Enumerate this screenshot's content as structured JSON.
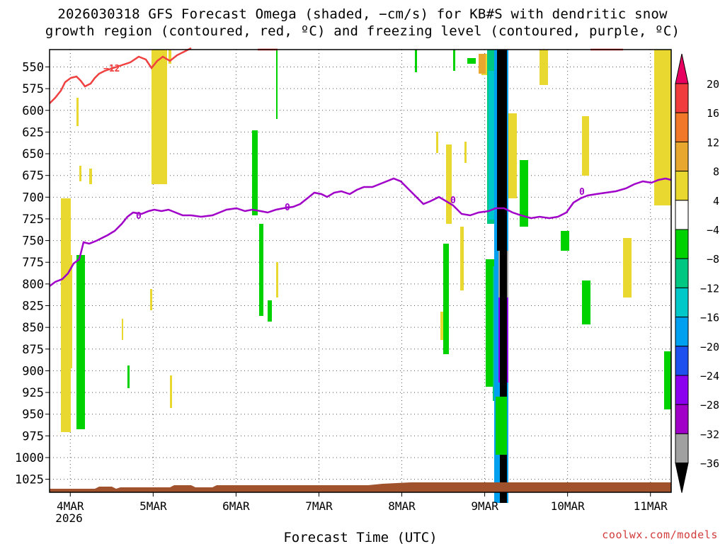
{
  "title_line1": "2026030318 GFS Forecast Omega (shaded, −cm/s) for KB#S with dendritic snow",
  "title_line2": "growth region (contoured, red, ºC) and freezing level (contoured, purple, ºC)",
  "credit": "coolwx.com/models",
  "chart_data": {
    "type": "heatmap",
    "xlabel": "Forecast Time (UTC)",
    "ylabel": "",
    "x_ticks": [
      "4MAR\n2026",
      "5MAR",
      "6MAR",
      "7MAR",
      "8MAR",
      "9MAR",
      "10MAR",
      "11MAR"
    ],
    "x_tick_hours": [
      6,
      30,
      54,
      78,
      102,
      126,
      150,
      174
    ],
    "xlim_hours": [
      0,
      180
    ],
    "y_ticks": [
      550,
      575,
      600,
      625,
      650,
      675,
      700,
      725,
      750,
      775,
      800,
      825,
      850,
      875,
      900,
      925,
      950,
      975,
      1000,
      1025
    ],
    "ylim_hpa": [
      530,
      1040
    ],
    "grid": true,
    "colorbar": {
      "labels": [
        "20",
        "16",
        "12",
        "8",
        "4",
        "−4",
        "−8",
        "−12",
        "−16",
        "−20",
        "−24",
        "−28",
        "−32",
        "−36"
      ],
      "colors": [
        "#e80060",
        "#f03c3c",
        "#f07828",
        "#e8a830",
        "#e8d830",
        "#ffffff",
        "#00d200",
        "#00c882",
        "#00c8c8",
        "#00a0f0",
        "#1e50f0",
        "#8c00f0",
        "#a000c8",
        "#a0a0a0",
        "#000000"
      ]
    },
    "contours": {
      "dgz_label": "−12",
      "freezing_label": "0",
      "dgz_color": "#f04040",
      "freezing_color": "#a000c8"
    },
    "terrain_color": "#a0522d"
  }
}
